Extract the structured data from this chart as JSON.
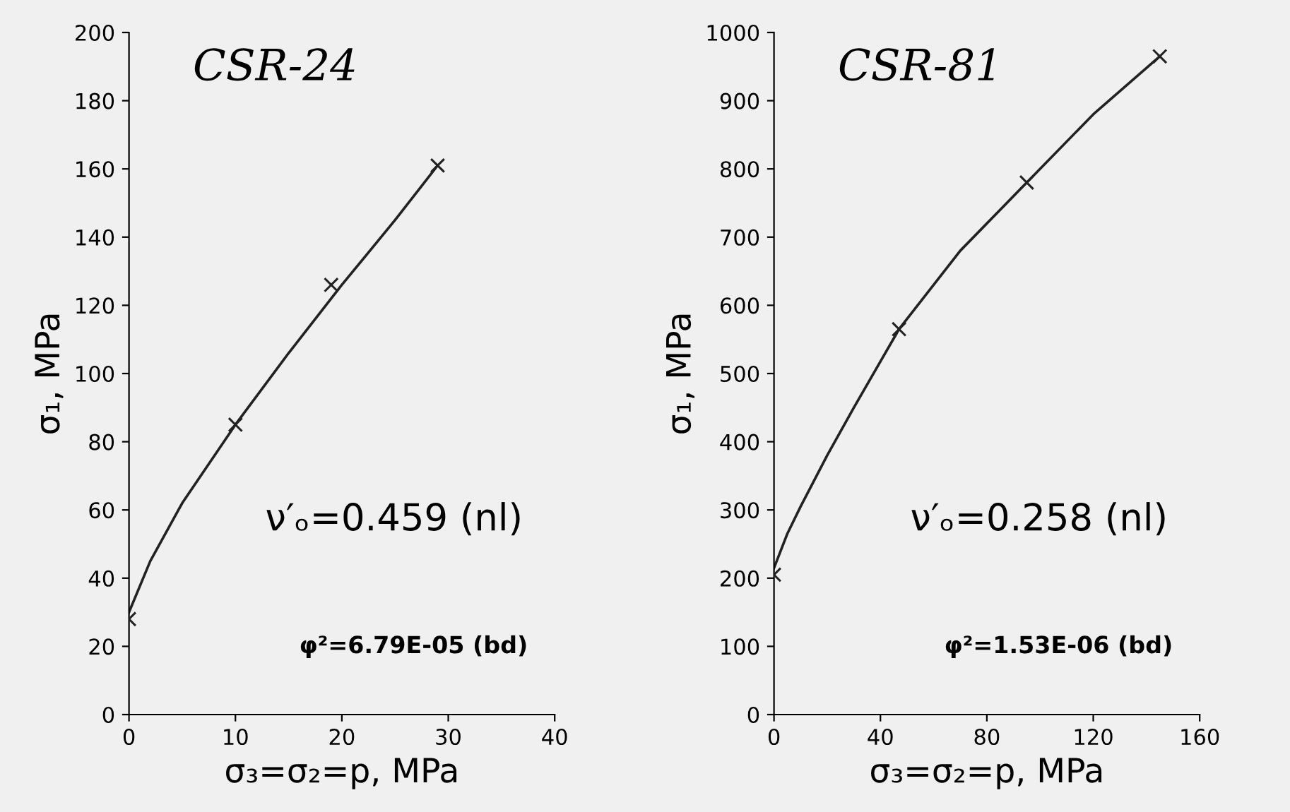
{
  "chart_data": [
    {
      "type": "line",
      "title": "CSR-24",
      "xlabel": "σ₃=σ₂=p, MPa",
      "ylabel": "σ₁, MPa",
      "xlim": [
        0,
        40
      ],
      "ylim": [
        0,
        200
      ],
      "xticks": [
        0,
        10,
        20,
        30,
        40
      ],
      "yticks": [
        0,
        20,
        40,
        60,
        80,
        100,
        120,
        140,
        160,
        180,
        200
      ],
      "grid": false,
      "legend": false,
      "series": [
        {
          "color": "#222222",
          "x": [
            0,
            2,
            5,
            10,
            15,
            20,
            25,
            29
          ],
          "values": [
            30,
            45,
            62,
            85,
            106,
            126,
            145,
            161
          ]
        },
        {
          "type": "scatter",
          "marker": "cross",
          "color": "#222222",
          "x": [
            0,
            10,
            19,
            29
          ],
          "values": [
            28,
            85,
            126,
            161
          ]
        }
      ],
      "annotations": [
        "ν′ₒ=0.459 (nl)",
        "φ²=6.79E-05 (bd)"
      ]
    },
    {
      "type": "line",
      "title": "CSR-81",
      "xlabel": "σ₃=σ₂=p, MPa",
      "ylabel": "σ₁, MPa",
      "xlim": [
        0,
        160
      ],
      "ylim": [
        0,
        1000
      ],
      "xticks": [
        0,
        40,
        80,
        120,
        160
      ],
      "yticks": [
        0,
        100,
        200,
        300,
        400,
        500,
        600,
        700,
        800,
        900,
        1000
      ],
      "grid": false,
      "legend": false,
      "series": [
        {
          "color": "#222222",
          "x": [
            0,
            5,
            10,
            20,
            30,
            47,
            70,
            95,
            120,
            145
          ],
          "values": [
            215,
            265,
            305,
            380,
            450,
            565,
            680,
            780,
            880,
            965
          ]
        },
        {
          "type": "scatter",
          "marker": "cross",
          "color": "#222222",
          "x": [
            0,
            47,
            95,
            145
          ],
          "values": [
            205,
            565,
            780,
            965
          ]
        }
      ],
      "annotations": [
        "ν′ₒ=0.258 (nl)",
        "φ²=1.53E-06 (bd)"
      ]
    }
  ]
}
